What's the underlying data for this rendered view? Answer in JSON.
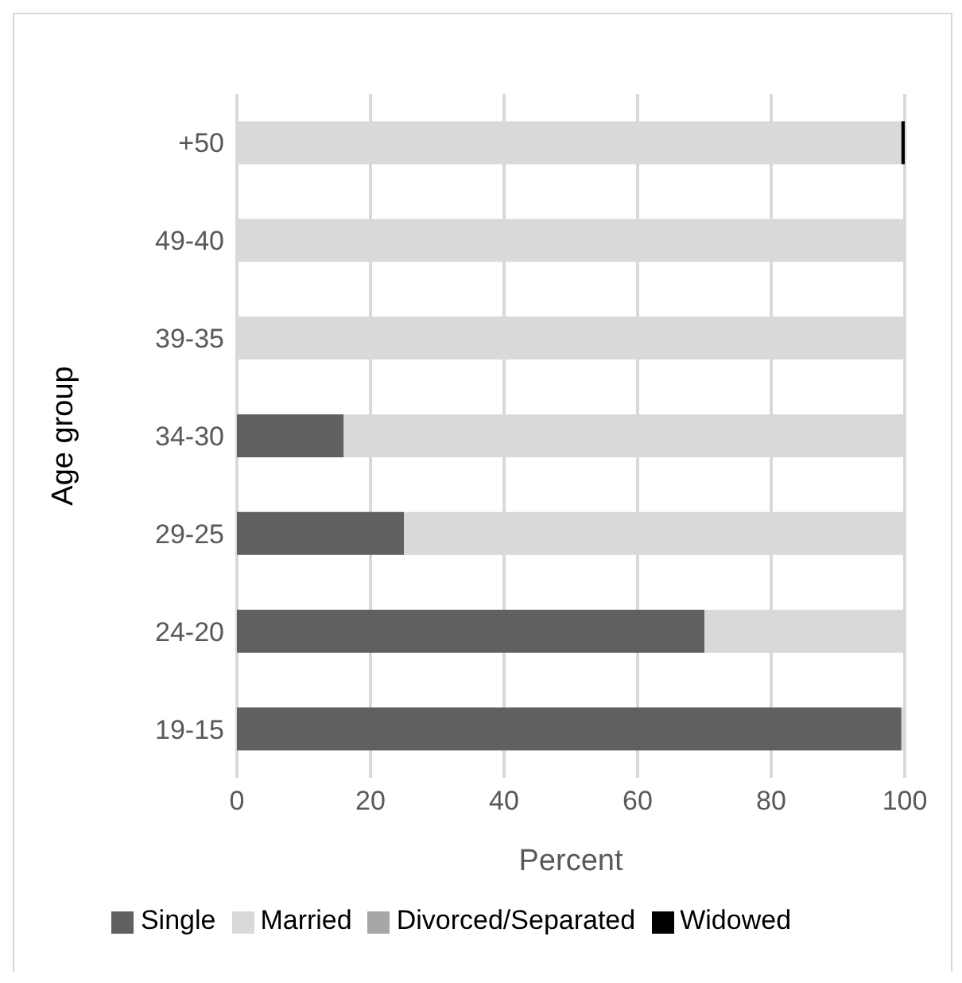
{
  "chart_data": {
    "type": "bar",
    "orientation": "horizontal",
    "stacked": true,
    "xlabel": "Percent",
    "ylabel": "Age group",
    "categories": [
      "+50",
      "49-40",
      "39-35",
      "34-30",
      "29-25",
      "24-20",
      "19-15"
    ],
    "series": [
      {
        "name": "Single",
        "color": "#606060",
        "values": [
          0,
          0,
          0,
          16,
          25,
          70,
          99.5
        ]
      },
      {
        "name": "Married",
        "color": "#d9d9d9",
        "values": [
          99.5,
          100,
          100,
          84,
          75,
          30,
          0.5
        ]
      },
      {
        "name": "Divorced/Separated",
        "color": "#a6a6a6",
        "values": [
          0,
          0,
          0,
          0,
          0,
          0,
          0
        ]
      },
      {
        "name": "Widowed",
        "color": "#000000",
        "values": [
          0.5,
          0,
          0,
          0,
          0,
          0,
          0
        ]
      }
    ],
    "xlim": [
      0,
      100
    ],
    "xticks": [
      0,
      20,
      40,
      60,
      80,
      100
    ],
    "grid": "x",
    "legend": "bottom"
  }
}
